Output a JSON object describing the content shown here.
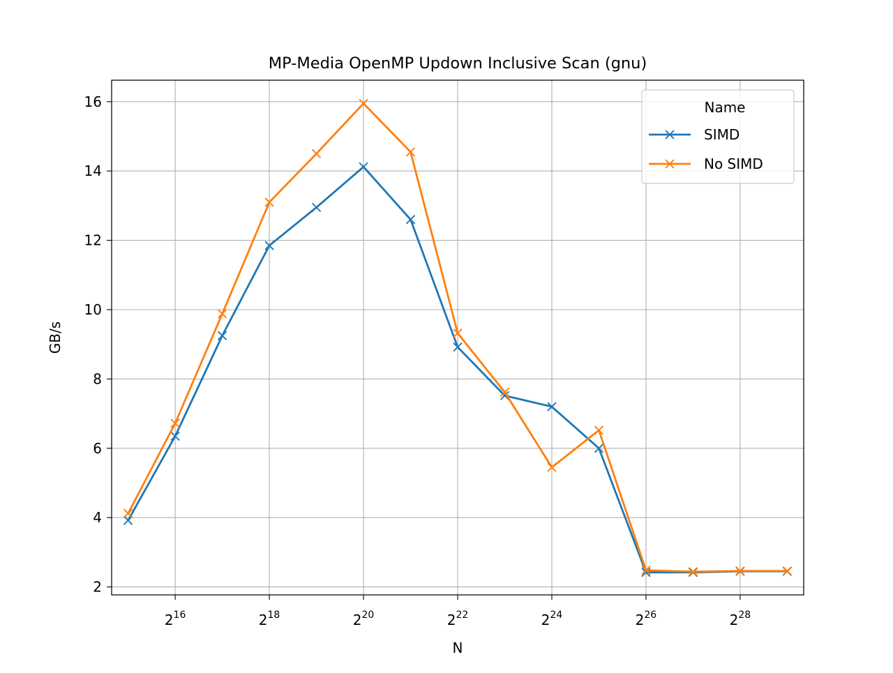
{
  "chart_data": {
    "type": "line",
    "title": "MP-Media OpenMP Updown Inclusive Scan (gnu)",
    "xlabel": "N",
    "ylabel": "GB/s",
    "x_scale": "log2",
    "x": [
      32768,
      65536,
      131072,
      262144,
      524288,
      1048576,
      2097152,
      4194304,
      8388608,
      16777216,
      33554432,
      67108864,
      134217728,
      268435456,
      536870912
    ],
    "xticks": [
      {
        "value": 65536,
        "base": "2",
        "exp": "16"
      },
      {
        "value": 262144,
        "base": "2",
        "exp": "18"
      },
      {
        "value": 1048576,
        "base": "2",
        "exp": "20"
      },
      {
        "value": 4194304,
        "base": "2",
        "exp": "22"
      },
      {
        "value": 16777216,
        "base": "2",
        "exp": "24"
      },
      {
        "value": 67108864,
        "base": "2",
        "exp": "26"
      },
      {
        "value": 268435456,
        "base": "2",
        "exp": "28"
      }
    ],
    "yticks": [
      2,
      4,
      6,
      8,
      10,
      12,
      14,
      16
    ],
    "ylim": [
      1.77,
      16.62
    ],
    "xlim_log2": [
      14.65,
      29.35
    ],
    "grid": true,
    "legend": {
      "title": "Name",
      "placement": "top-right"
    },
    "series": [
      {
        "name": "SIMD",
        "color": "#1f77b4",
        "marker": "x",
        "values": [
          3.92,
          6.35,
          9.25,
          11.85,
          12.95,
          14.12,
          12.6,
          8.92,
          7.52,
          7.2,
          6.0,
          2.42,
          2.42,
          2.45,
          2.45
        ]
      },
      {
        "name": "No SIMD",
        "color": "#ff7f0e",
        "marker": "x",
        "values": [
          4.12,
          6.72,
          9.88,
          13.1,
          14.5,
          15.95,
          14.55,
          9.32,
          7.62,
          5.45,
          6.52,
          2.48,
          2.44,
          2.46,
          2.46
        ]
      }
    ]
  }
}
